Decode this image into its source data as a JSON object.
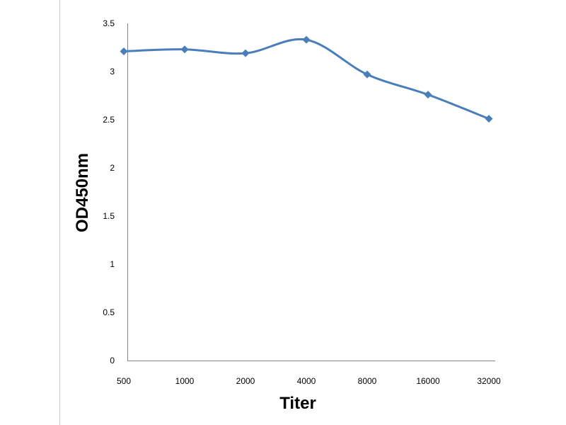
{
  "chart_data": {
    "type": "line",
    "title": "",
    "xlabel": "Titer",
    "ylabel": "OD450nm",
    "categories": [
      "500",
      "1000",
      "2000",
      "4000",
      "8000",
      "16000",
      "32000"
    ],
    "series": [
      {
        "values": [
          3.21,
          3.23,
          3.19,
          3.33,
          2.97,
          2.76,
          2.51
        ],
        "color": "#4a7ebb"
      }
    ],
    "ylim": [
      0,
      3.5
    ],
    "yticks": [
      "0",
      "0.5",
      "1",
      "1.5",
      "2",
      "2.5",
      "3",
      "3.5"
    ],
    "grid": false,
    "legend": "none",
    "marker": "diamond"
  }
}
